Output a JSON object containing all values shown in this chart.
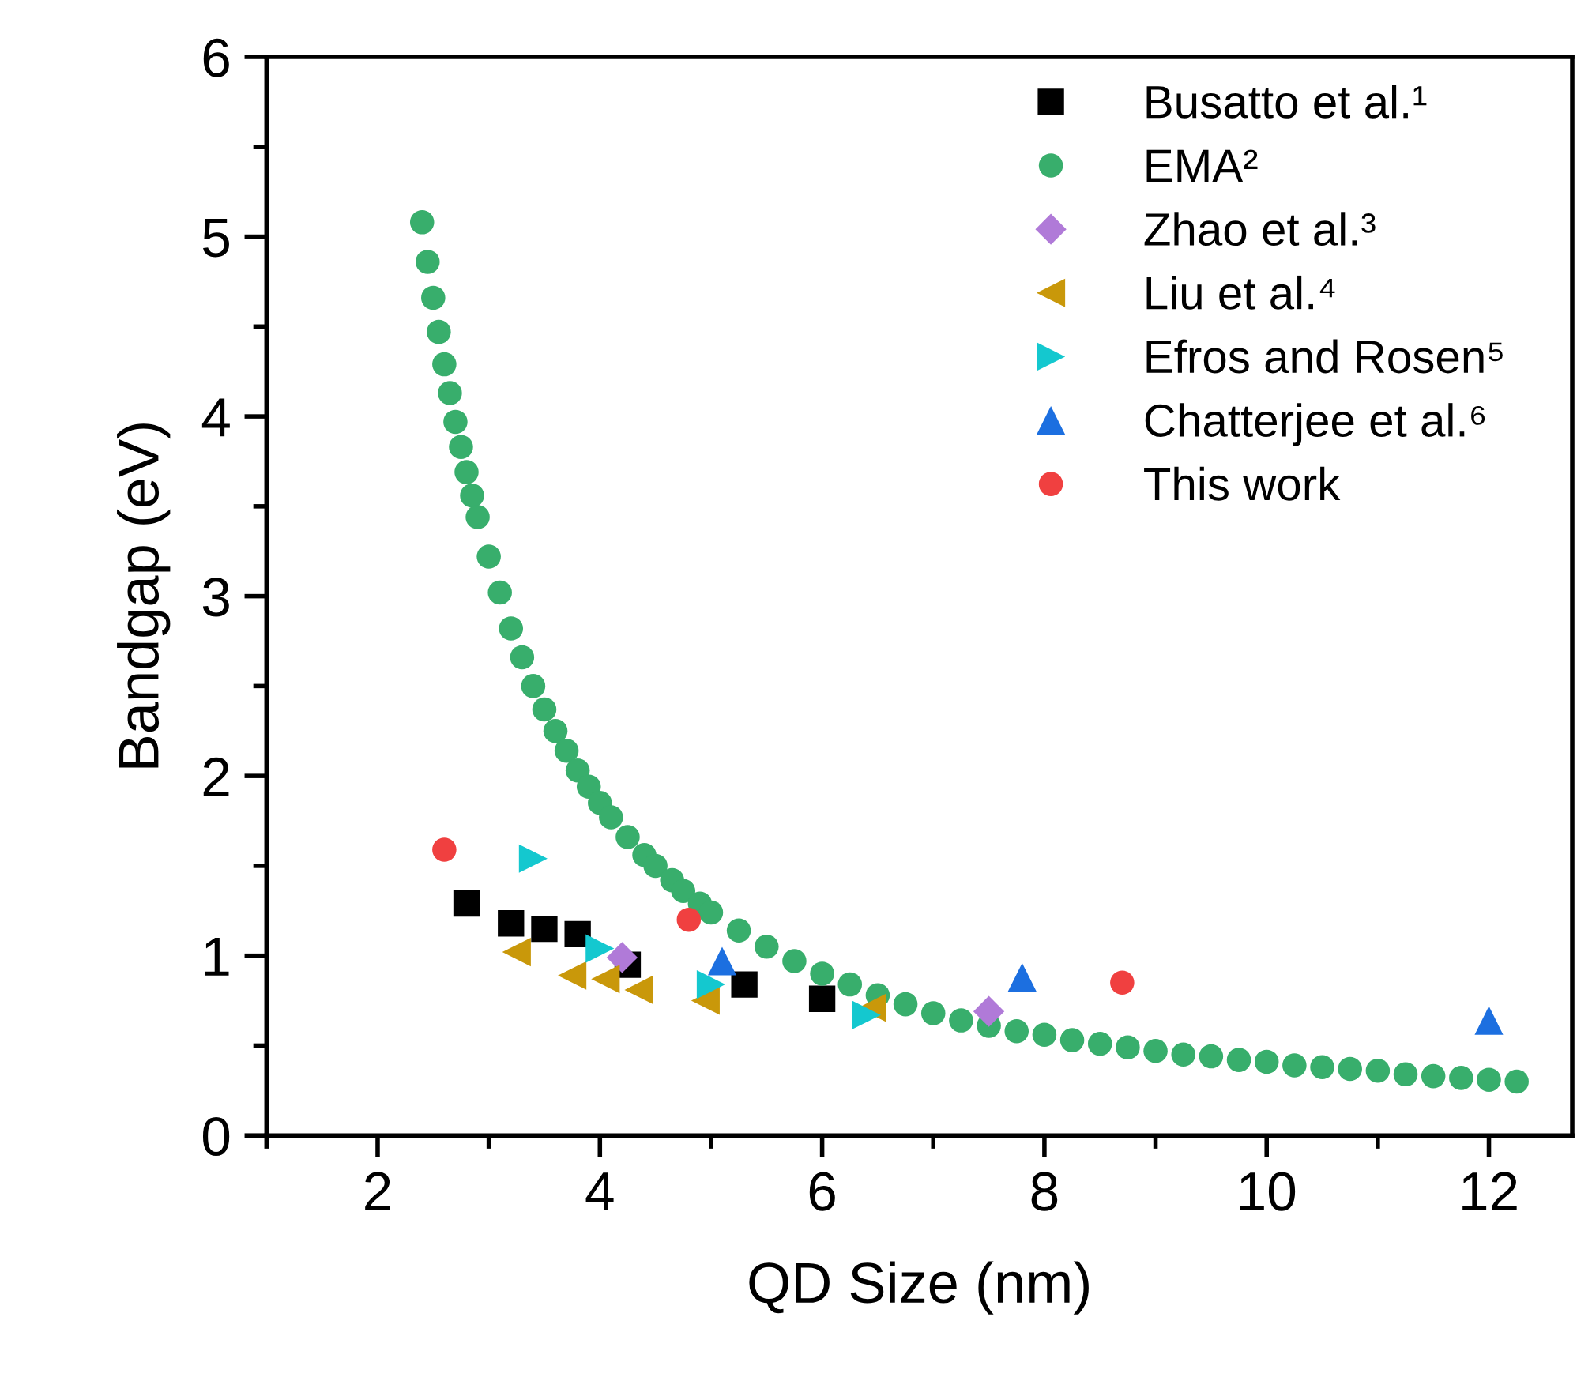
{
  "chart_data": {
    "type": "scatter",
    "xlabel": "QD Size (nm)",
    "ylabel": "Bandgap (eV)",
    "xlim": [
      1,
      12.75
    ],
    "ylim": [
      0,
      6
    ],
    "xticks": [
      {
        "value": 1,
        "label": null
      },
      2,
      {
        "value": 3,
        "label": null
      },
      4,
      {
        "value": 5,
        "label": null
      },
      6,
      {
        "value": 7,
        "label": null
      },
      8,
      {
        "value": 9,
        "label": null
      },
      10,
      {
        "value": 11,
        "label": null
      },
      12
    ],
    "yticks": [
      0,
      {
        "value": 0.5,
        "label": null
      },
      1,
      {
        "value": 1.5,
        "label": null
      },
      2,
      {
        "value": 2.5,
        "label": null
      },
      3,
      {
        "value": 3.5,
        "label": null
      },
      4,
      {
        "value": 4.5,
        "label": null
      },
      5,
      {
        "value": 5.5,
        "label": null
      },
      6
    ],
    "grid": false,
    "legend": "top right",
    "series": [
      {
        "name": "Busatto et al.¹",
        "color": "#000000",
        "marker": "square",
        "x": [
          2.8,
          3.2,
          3.5,
          3.8,
          4.25,
          5.3,
          6.0
        ],
        "values": [
          1.29,
          1.18,
          1.15,
          1.12,
          0.95,
          0.84,
          0.76
        ]
      },
      {
        "name": "EMA²",
        "color": "#38ae6c",
        "marker": "circle",
        "x": [
          2.4,
          2.45,
          2.5,
          2.55,
          2.6,
          2.65,
          2.7,
          2.75,
          2.8,
          2.85,
          2.9,
          3.0,
          3.1,
          3.2,
          3.3,
          3.4,
          3.5,
          3.6,
          3.7,
          3.8,
          3.9,
          4.0,
          4.1,
          4.25,
          4.4,
          4.5,
          4.65,
          4.75,
          4.9,
          5.0,
          5.25,
          5.5,
          5.75,
          6.0,
          6.25,
          6.5,
          6.75,
          7.0,
          7.25,
          7.5,
          7.75,
          8.0,
          8.25,
          8.5,
          8.75,
          9.0,
          9.25,
          9.5,
          9.75,
          10.0,
          10.25,
          10.5,
          10.75,
          11.0,
          11.25,
          11.5,
          11.75,
          12.0,
          12.25
        ],
        "values": [
          5.08,
          4.86,
          4.66,
          4.47,
          4.29,
          4.13,
          3.97,
          3.83,
          3.69,
          3.56,
          3.44,
          3.22,
          3.02,
          2.82,
          2.66,
          2.5,
          2.37,
          2.25,
          2.14,
          2.03,
          1.94,
          1.85,
          1.77,
          1.66,
          1.56,
          1.5,
          1.42,
          1.36,
          1.29,
          1.24,
          1.14,
          1.05,
          0.97,
          0.9,
          0.84,
          0.78,
          0.73,
          0.68,
          0.64,
          0.61,
          0.58,
          0.56,
          0.53,
          0.51,
          0.49,
          0.47,
          0.45,
          0.44,
          0.42,
          0.41,
          0.39,
          0.38,
          0.37,
          0.36,
          0.34,
          0.33,
          0.32,
          0.31,
          0.3
        ]
      },
      {
        "name": "Zhao et al.³",
        "color": "#b07ad8",
        "marker": "diamond",
        "x": [
          4.2,
          7.5
        ],
        "values": [
          0.99,
          0.69
        ]
      },
      {
        "name": "Liu et al.⁴",
        "color": "#c9980a",
        "marker": "triangle_left",
        "x": [
          3.25,
          3.75,
          4.05,
          4.35,
          4.95,
          6.45
        ],
        "values": [
          1.02,
          0.89,
          0.87,
          0.81,
          0.75,
          0.71
        ]
      },
      {
        "name": "Efros and Rosen⁵",
        "color": "#14c8cf",
        "marker": "triangle_right",
        "x": [
          3.4,
          4.0,
          5.0,
          6.4
        ],
        "values": [
          1.54,
          1.04,
          0.84,
          0.67
        ]
      },
      {
        "name": "Chatterjee et al.⁶",
        "color": "#1c6fe0",
        "marker": "triangle",
        "x": [
          5.1,
          7.8,
          12.0
        ],
        "values": [
          0.97,
          0.88,
          0.64
        ]
      },
      {
        "name": "This work",
        "color": "#f04040",
        "marker": "circle",
        "x": [
          2.6,
          4.8,
          8.7
        ],
        "values": [
          1.59,
          1.2,
          0.85
        ]
      }
    ]
  }
}
